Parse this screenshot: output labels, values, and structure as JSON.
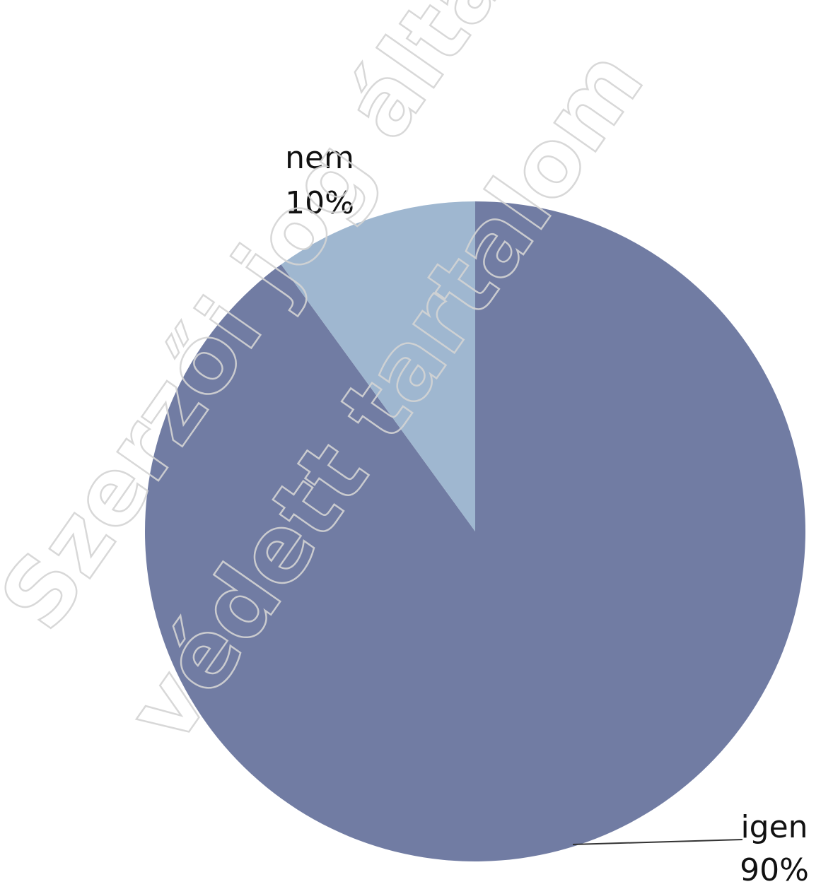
{
  "chart_data": {
    "type": "pie",
    "title": "",
    "slices": [
      {
        "label": "igen",
        "percent_label": "90%",
        "value": 90,
        "color": "#717ca3"
      },
      {
        "label": "nem",
        "percent_label": "10%",
        "value": 10,
        "color": "#9fb7d0"
      }
    ]
  },
  "watermark": {
    "line1": "Szerzői jog által",
    "line2": "védett tartalom"
  }
}
